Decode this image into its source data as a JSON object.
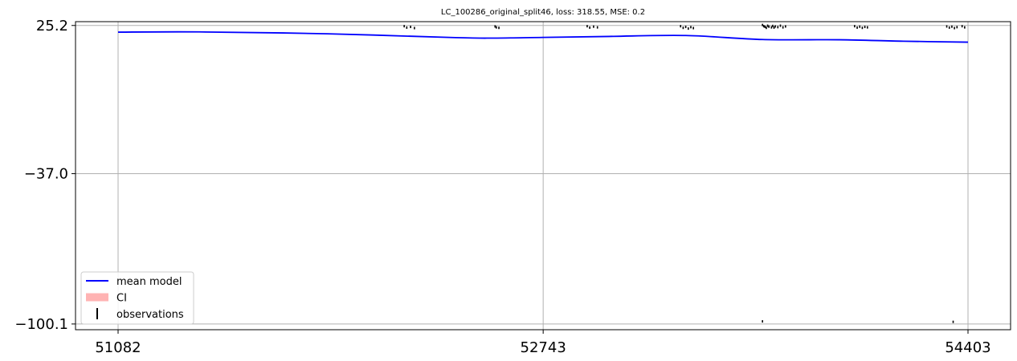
{
  "chart_data": {
    "type": "line",
    "title": "LC_100286_original_split46, loss: 318.55, MSE: 0.2",
    "xlabel": "",
    "ylabel": "",
    "xlim": [
      51082,
      54403
    ],
    "ylim": [
      -102.5,
      26.8
    ],
    "x_ticks": [
      51082,
      52743,
      54403
    ],
    "x_tick_labels": [
      "51082",
      "52743",
      "54403"
    ],
    "y_ticks": [
      25.2,
      -37.0,
      -100.1
    ],
    "y_tick_labels": [
      "25.2",
      "−37.0",
      "−100.1"
    ],
    "grid": true,
    "legend_position": "lower-left",
    "legend": [
      {
        "label": "mean model",
        "kind": "line",
        "color": "#0000ff"
      },
      {
        "label": "CI",
        "kind": "patch",
        "color": "#ffb3b3"
      },
      {
        "label": "observations",
        "kind": "errorbar",
        "color": "#000000"
      }
    ],
    "series": [
      {
        "name": "mean model",
        "color": "#0000ff",
        "x": [
          51082,
          51400,
          51900,
          52400,
          52550,
          52743,
          53000,
          53300,
          53600,
          53900,
          54150,
          54403
        ],
        "y": [
          22.4,
          22.5,
          21.7,
          20.1,
          19.9,
          20.2,
          20.6,
          21.0,
          19.3,
          19.2,
          18.6,
          18.2
        ]
      },
      {
        "name": "observations",
        "color": "#000000",
        "kind": "scatter",
        "x": [
          52200,
          52210,
          52225,
          52240,
          52555,
          52570,
          52560,
          52915,
          52925,
          52940,
          52955,
          53280,
          53290,
          53300,
          53310,
          53320,
          53330,
          53600,
          53605,
          53610,
          53615,
          53620,
          53625,
          53635,
          53640,
          53645,
          53650,
          53660,
          53670,
          53680,
          53690,
          53960,
          53970,
          53980,
          53990,
          54000,
          54010,
          54320,
          54330,
          54340,
          54350,
          54360,
          54380,
          54390,
          53600,
          54345
        ],
        "y": [
          24.9,
          24.3,
          24.6,
          24.1,
          24.8,
          24.2,
          24.4,
          24.9,
          24.3,
          24.7,
          24.4,
          24.9,
          24.2,
          24.6,
          23.9,
          24.5,
          24.1,
          25.4,
          24.9,
          24.6,
          24.2,
          25.1,
          24.7,
          24.4,
          25.0,
          24.3,
          24.8,
          24.5,
          25.1,
          24.4,
          24.8,
          24.9,
          24.3,
          24.7,
          24.2,
          24.6,
          24.4,
          24.8,
          24.3,
          24.7,
          24.1,
          24.5,
          24.9,
          24.4,
          -99.0,
          -99.2
        ]
      }
    ]
  }
}
